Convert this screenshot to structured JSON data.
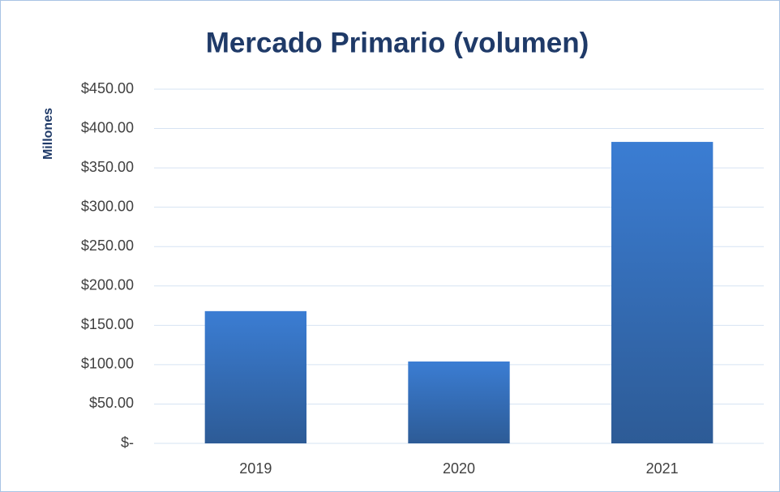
{
  "chart_data": {
    "type": "bar",
    "title": "Mercado Primario (volumen)",
    "ylabel": "Millones",
    "categories": [
      "2019",
      "2020",
      "2021"
    ],
    "values": [
      168,
      104,
      383
    ],
    "color": [
      "#3b7dd3",
      "#2d5b96"
    ],
    "ylim": [
      0,
      450
    ],
    "yticks": [
      {
        "value": 0,
        "label": "$-"
      },
      {
        "value": 50,
        "label": "$50.00"
      },
      {
        "value": 100,
        "label": "$100.00"
      },
      {
        "value": 150,
        "label": "$150.00"
      },
      {
        "value": 200,
        "label": "$200.00"
      },
      {
        "value": 250,
        "label": "$250.00"
      },
      {
        "value": 300,
        "label": "$300.00"
      },
      {
        "value": 350,
        "label": "$350.00"
      },
      {
        "value": 400,
        "label": "$400.00"
      },
      {
        "value": 450,
        "label": "$450.00"
      }
    ],
    "grid": true
  }
}
